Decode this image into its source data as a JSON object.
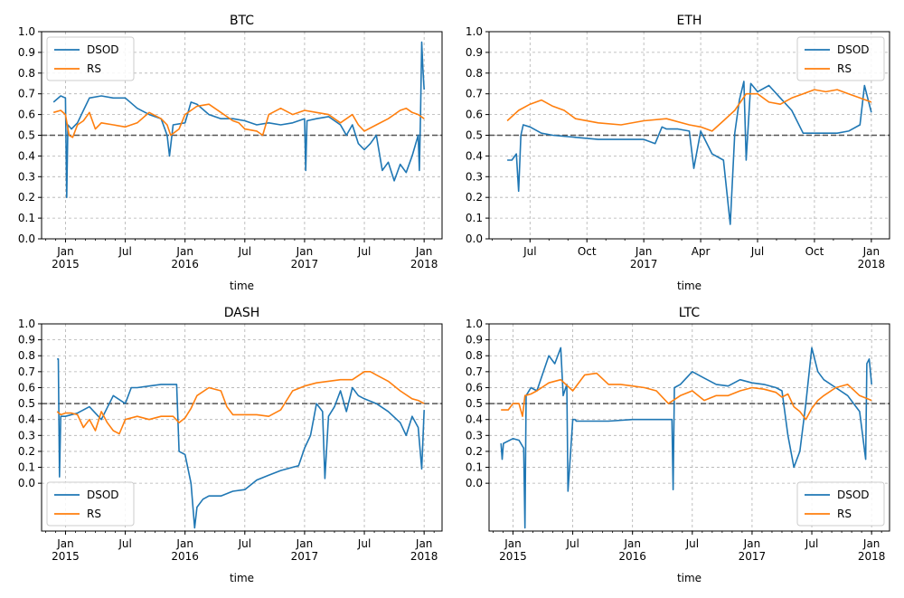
{
  "colors": {
    "dsod": "#1f77b4",
    "rs": "#ff7f0e",
    "grid": "#b0b0b0",
    "half_line": "#555555"
  },
  "chart_data": [
    {
      "type": "line",
      "title": "BTC",
      "xlabel": "time",
      "ylabel": "",
      "ylim": [
        0,
        1
      ],
      "yticks": [
        "0.0",
        "0.1",
        "0.2",
        "0.3",
        "0.4",
        "0.5",
        "0.6",
        "0.7",
        "0.8",
        "0.9",
        "1.0"
      ],
      "ytick_values": [
        0,
        0.1,
        0.2,
        0.3,
        0.4,
        0.5,
        0.6,
        0.7,
        0.8,
        0.9,
        1.0
      ],
      "xlim": [
        2014.8,
        2018.15
      ],
      "xtick_values": [
        2015.0,
        2015.5,
        2016.0,
        2016.5,
        2017.0,
        2017.5,
        2018.0
      ],
      "xticks": [
        "Jan\n2015",
        "Jul",
        "Jan\n2016",
        "Jul",
        "Jan\n2017",
        "Jul",
        "Jan\n2018"
      ],
      "reference_line": 0.5,
      "grid": true,
      "legend": "upper left",
      "series": [
        {
          "name": "DSOD",
          "color": "#1f77b4",
          "x": [
            2014.9,
            2014.96,
            2015.0,
            2015.01,
            2015.02,
            2015.05,
            2015.1,
            2015.15,
            2015.2,
            2015.3,
            2015.4,
            2015.5,
            2015.6,
            2015.7,
            2015.8,
            2015.85,
            2015.87,
            2015.9,
            2016.0,
            2016.05,
            2016.1,
            2016.2,
            2016.3,
            2016.4,
            2016.5,
            2016.6,
            2016.7,
            2016.8,
            2016.9,
            2017.0,
            2017.01,
            2017.02,
            2017.1,
            2017.2,
            2017.3,
            2017.35,
            2017.4,
            2017.45,
            2017.5,
            2017.55,
            2017.6,
            2017.65,
            2017.7,
            2017.75,
            2017.8,
            2017.85,
            2017.9,
            2017.95,
            2017.96,
            2017.97,
            2017.98,
            2017.99,
            2018.0
          ],
          "y": [
            0.66,
            0.69,
            0.68,
            0.2,
            0.55,
            0.53,
            0.56,
            0.62,
            0.68,
            0.69,
            0.68,
            0.68,
            0.63,
            0.6,
            0.58,
            0.5,
            0.4,
            0.55,
            0.56,
            0.66,
            0.65,
            0.6,
            0.58,
            0.58,
            0.57,
            0.55,
            0.56,
            0.55,
            0.56,
            0.58,
            0.33,
            0.57,
            0.58,
            0.59,
            0.55,
            0.5,
            0.55,
            0.46,
            0.43,
            0.46,
            0.5,
            0.33,
            0.37,
            0.28,
            0.36,
            0.32,
            0.4,
            0.5,
            0.33,
            0.6,
            0.95,
            0.82,
            0.72
          ]
        },
        {
          "name": "RS",
          "color": "#ff7f0e",
          "x": [
            2014.9,
            2014.96,
            2015.0,
            2015.03,
            2015.06,
            2015.1,
            2015.15,
            2015.2,
            2015.25,
            2015.3,
            2015.4,
            2015.5,
            2015.6,
            2015.7,
            2015.8,
            2015.85,
            2015.88,
            2015.95,
            2016.0,
            2016.1,
            2016.2,
            2016.3,
            2016.4,
            2016.45,
            2016.5,
            2016.6,
            2016.65,
            2016.7,
            2016.8,
            2016.9,
            2017.0,
            2017.1,
            2017.2,
            2017.3,
            2017.4,
            2017.45,
            2017.5,
            2017.6,
            2017.7,
            2017.8,
            2017.85,
            2017.9,
            2017.95,
            2018.0
          ],
          "y": [
            0.61,
            0.62,
            0.6,
            0.5,
            0.49,
            0.55,
            0.57,
            0.61,
            0.53,
            0.56,
            0.55,
            0.54,
            0.56,
            0.61,
            0.58,
            0.55,
            0.5,
            0.53,
            0.6,
            0.64,
            0.65,
            0.61,
            0.57,
            0.56,
            0.53,
            0.52,
            0.5,
            0.6,
            0.63,
            0.6,
            0.62,
            0.61,
            0.6,
            0.56,
            0.6,
            0.55,
            0.52,
            0.55,
            0.58,
            0.62,
            0.63,
            0.61,
            0.6,
            0.58
          ]
        }
      ]
    },
    {
      "type": "line",
      "title": "ETH",
      "xlabel": "time",
      "ylabel": "",
      "ylim": [
        0,
        1
      ],
      "yticks": [
        "0.0",
        "0.1",
        "0.2",
        "0.3",
        "0.4",
        "0.5",
        "0.6",
        "0.7",
        "0.8",
        "0.9",
        "1.0"
      ],
      "ytick_values": [
        0,
        0.1,
        0.2,
        0.3,
        0.4,
        0.5,
        0.6,
        0.7,
        0.8,
        0.9,
        1.0
      ],
      "xlim": [
        2016.32,
        2018.08
      ],
      "xtick_values": [
        2016.5,
        2016.75,
        2017.0,
        2017.25,
        2017.5,
        2017.75,
        2018.0
      ],
      "xticks": [
        "Jul",
        "Oct",
        "Jan\n2017",
        "Apr",
        "Jul",
        "Oct",
        "Jan\n2018"
      ],
      "reference_line": 0.5,
      "grid": true,
      "legend": "upper right",
      "series": [
        {
          "name": "DSOD",
          "color": "#1f77b4",
          "x": [
            2016.4,
            2016.42,
            2016.44,
            2016.45,
            2016.46,
            2016.47,
            2016.5,
            2016.55,
            2016.6,
            2016.7,
            2016.8,
            2016.9,
            2017.0,
            2017.05,
            2017.08,
            2017.1,
            2017.15,
            2017.2,
            2017.22,
            2017.25,
            2017.3,
            2017.35,
            2017.38,
            2017.4,
            2017.42,
            2017.44,
            2017.45,
            2017.47,
            2017.5,
            2017.55,
            2017.6,
            2017.65,
            2017.7,
            2017.75,
            2017.8,
            2017.85,
            2017.9,
            2017.95,
            2017.97,
            2018.0
          ],
          "y": [
            0.38,
            0.38,
            0.41,
            0.23,
            0.5,
            0.55,
            0.54,
            0.51,
            0.5,
            0.49,
            0.48,
            0.48,
            0.48,
            0.46,
            0.54,
            0.53,
            0.53,
            0.52,
            0.34,
            0.52,
            0.41,
            0.38,
            0.07,
            0.51,
            0.67,
            0.76,
            0.38,
            0.75,
            0.71,
            0.74,
            0.68,
            0.62,
            0.51,
            0.51,
            0.51,
            0.51,
            0.52,
            0.55,
            0.74,
            0.61
          ]
        },
        {
          "name": "RS",
          "color": "#ff7f0e",
          "x": [
            2016.4,
            2016.45,
            2016.5,
            2016.55,
            2016.6,
            2016.65,
            2016.7,
            2016.8,
            2016.9,
            2017.0,
            2017.1,
            2017.2,
            2017.25,
            2017.3,
            2017.35,
            2017.4,
            2017.45,
            2017.5,
            2017.55,
            2017.6,
            2017.65,
            2017.7,
            2017.75,
            2017.8,
            2017.85,
            2017.9,
            2017.95,
            2018.0
          ],
          "y": [
            0.57,
            0.62,
            0.65,
            0.67,
            0.64,
            0.62,
            0.58,
            0.56,
            0.55,
            0.57,
            0.58,
            0.55,
            0.54,
            0.52,
            0.57,
            0.62,
            0.7,
            0.7,
            0.66,
            0.65,
            0.68,
            0.7,
            0.72,
            0.71,
            0.72,
            0.7,
            0.68,
            0.66
          ]
        }
      ]
    },
    {
      "type": "line",
      "title": "DASH",
      "xlabel": "time",
      "ylabel": "",
      "ylim": [
        -0.3,
        1
      ],
      "yticks": [
        "0.0",
        "0.1",
        "0.2",
        "0.3",
        "0.4",
        "0.5",
        "0.6",
        "0.7",
        "0.8",
        "0.9",
        "1.0"
      ],
      "ytick_values": [
        0,
        0.1,
        0.2,
        0.3,
        0.4,
        0.5,
        0.6,
        0.7,
        0.8,
        0.9,
        1.0
      ],
      "xlim": [
        2014.8,
        2018.15
      ],
      "xtick_values": [
        2015.0,
        2015.5,
        2016.0,
        2016.5,
        2017.0,
        2017.5,
        2018.0
      ],
      "xticks": [
        "Jan\n2015",
        "Jul",
        "Jan\n2016",
        "Jul",
        "Jan\n2017",
        "Jul",
        "Jan\n2018"
      ],
      "reference_line": 0.5,
      "grid": true,
      "legend": "lower left",
      "series": [
        {
          "name": "DSOD",
          "color": "#1f77b4",
          "x": [
            2014.93,
            2014.94,
            2014.95,
            2014.96,
            2015.0,
            2015.1,
            2015.2,
            2015.3,
            2015.4,
            2015.5,
            2015.55,
            2015.6,
            2015.7,
            2015.8,
            2015.93,
            2015.95,
            2016.0,
            2016.05,
            2016.08,
            2016.1,
            2016.15,
            2016.2,
            2016.3,
            2016.4,
            2016.5,
            2016.6,
            2016.7,
            2016.8,
            2016.9,
            2016.95,
            2017.0,
            2017.05,
            2017.1,
            2017.15,
            2017.17,
            2017.2,
            2017.25,
            2017.3,
            2017.35,
            2017.4,
            2017.45,
            2017.5,
            2017.6,
            2017.7,
            2017.8,
            2017.85,
            2017.9,
            2017.95,
            2017.98,
            2018.0
          ],
          "y": [
            0.78,
            0.78,
            0.04,
            0.42,
            0.42,
            0.44,
            0.48,
            0.4,
            0.55,
            0.5,
            0.6,
            0.6,
            0.61,
            0.62,
            0.62,
            0.2,
            0.18,
            0.0,
            -0.28,
            -0.15,
            -0.1,
            -0.08,
            -0.08,
            -0.05,
            -0.04,
            0.02,
            0.05,
            0.08,
            0.1,
            0.11,
            0.22,
            0.3,
            0.5,
            0.45,
            0.03,
            0.42,
            0.48,
            0.58,
            0.45,
            0.6,
            0.55,
            0.53,
            0.5,
            0.45,
            0.38,
            0.3,
            0.42,
            0.35,
            0.09,
            0.46
          ]
        },
        {
          "name": "RS",
          "color": "#ff7f0e",
          "x": [
            2014.93,
            2014.96,
            2015.0,
            2015.05,
            2015.1,
            2015.15,
            2015.2,
            2015.25,
            2015.3,
            2015.35,
            2015.4,
            2015.45,
            2015.5,
            2015.6,
            2015.7,
            2015.8,
            2015.9,
            2015.95,
            2016.0,
            2016.05,
            2016.1,
            2016.2,
            2016.3,
            2016.35,
            2016.4,
            2016.5,
            2016.6,
            2016.7,
            2016.8,
            2016.9,
            2017.0,
            2017.1,
            2017.2,
            2017.3,
            2017.4,
            2017.5,
            2017.55,
            2017.6,
            2017.7,
            2017.8,
            2017.9,
            2017.95,
            2018.0
          ],
          "y": [
            0.45,
            0.43,
            0.44,
            0.44,
            0.43,
            0.35,
            0.4,
            0.33,
            0.45,
            0.38,
            0.33,
            0.31,
            0.4,
            0.42,
            0.4,
            0.42,
            0.42,
            0.38,
            0.41,
            0.47,
            0.55,
            0.6,
            0.58,
            0.48,
            0.43,
            0.43,
            0.43,
            0.42,
            0.46,
            0.58,
            0.61,
            0.63,
            0.64,
            0.65,
            0.65,
            0.7,
            0.7,
            0.68,
            0.64,
            0.58,
            0.53,
            0.52,
            0.5
          ]
        }
      ]
    },
    {
      "type": "line",
      "title": "LTC",
      "xlabel": "time",
      "ylabel": "",
      "ylim": [
        -0.3,
        1
      ],
      "yticks": [
        "0.0",
        "0.1",
        "0.2",
        "0.3",
        "0.4",
        "0.5",
        "0.6",
        "0.7",
        "0.8",
        "0.9",
        "1.0"
      ],
      "ytick_values": [
        0,
        0.1,
        0.2,
        0.3,
        0.4,
        0.5,
        0.6,
        0.7,
        0.8,
        0.9,
        1.0
      ],
      "xlim": [
        2014.8,
        2018.15
      ],
      "xtick_values": [
        2015.0,
        2015.5,
        2016.0,
        2016.5,
        2017.0,
        2017.5,
        2018.0
      ],
      "xticks": [
        "Jan\n2015",
        "Jul",
        "Jan\n2016",
        "Jul",
        "Jan\n2017",
        "Jul",
        "Jan\n2018"
      ],
      "reference_line": 0.5,
      "grid": true,
      "legend": "lower right",
      "series": [
        {
          "name": "DSOD",
          "color": "#1f77b4",
          "x": [
            2014.9,
            2014.91,
            2014.92,
            2015.0,
            2015.05,
            2015.09,
            2015.1,
            2015.11,
            2015.15,
            2015.2,
            2015.3,
            2015.35,
            2015.4,
            2015.42,
            2015.45,
            2015.46,
            2015.5,
            2015.52,
            2015.53,
            2015.6,
            2015.8,
            2016.0,
            2016.2,
            2016.3,
            2016.33,
            2016.34,
            2016.35,
            2016.4,
            2016.5,
            2016.6,
            2016.7,
            2016.8,
            2016.9,
            2017.0,
            2017.1,
            2017.2,
            2017.25,
            2017.3,
            2017.35,
            2017.4,
            2017.45,
            2017.5,
            2017.55,
            2017.6,
            2017.7,
            2017.8,
            2017.85,
            2017.9,
            2017.95,
            2017.96,
            2017.98,
            2018.0
          ],
          "y": [
            0.25,
            0.15,
            0.25,
            0.28,
            0.27,
            0.22,
            -0.28,
            0.55,
            0.6,
            0.58,
            0.8,
            0.75,
            0.85,
            0.55,
            0.62,
            -0.05,
            0.4,
            0.4,
            0.39,
            0.39,
            0.39,
            0.4,
            0.4,
            0.4,
            0.4,
            -0.04,
            0.6,
            0.62,
            0.7,
            0.66,
            0.62,
            0.61,
            0.65,
            0.63,
            0.62,
            0.6,
            0.58,
            0.3,
            0.1,
            0.2,
            0.5,
            0.85,
            0.7,
            0.65,
            0.6,
            0.55,
            0.5,
            0.45,
            0.15,
            0.75,
            0.78,
            0.62
          ]
        },
        {
          "name": "RS",
          "color": "#ff7f0e",
          "x": [
            2014.9,
            2014.96,
            2015.0,
            2015.05,
            2015.08,
            2015.1,
            2015.15,
            2015.2,
            2015.3,
            2015.4,
            2015.5,
            2015.6,
            2015.7,
            2015.8,
            2015.9,
            2016.0,
            2016.1,
            2016.2,
            2016.3,
            2016.4,
            2016.5,
            2016.6,
            2016.7,
            2016.8,
            2016.9,
            2017.0,
            2017.1,
            2017.2,
            2017.25,
            2017.3,
            2017.35,
            2017.4,
            2017.45,
            2017.5,
            2017.55,
            2017.6,
            2017.7,
            2017.8,
            2017.9,
            2018.0
          ],
          "y": [
            0.46,
            0.46,
            0.5,
            0.5,
            0.42,
            0.55,
            0.56,
            0.58,
            0.63,
            0.65,
            0.58,
            0.68,
            0.69,
            0.62,
            0.62,
            0.61,
            0.6,
            0.58,
            0.5,
            0.55,
            0.58,
            0.52,
            0.55,
            0.55,
            0.58,
            0.6,
            0.59,
            0.57,
            0.54,
            0.56,
            0.48,
            0.45,
            0.4,
            0.47,
            0.52,
            0.55,
            0.6,
            0.62,
            0.55,
            0.52
          ]
        }
      ]
    }
  ]
}
